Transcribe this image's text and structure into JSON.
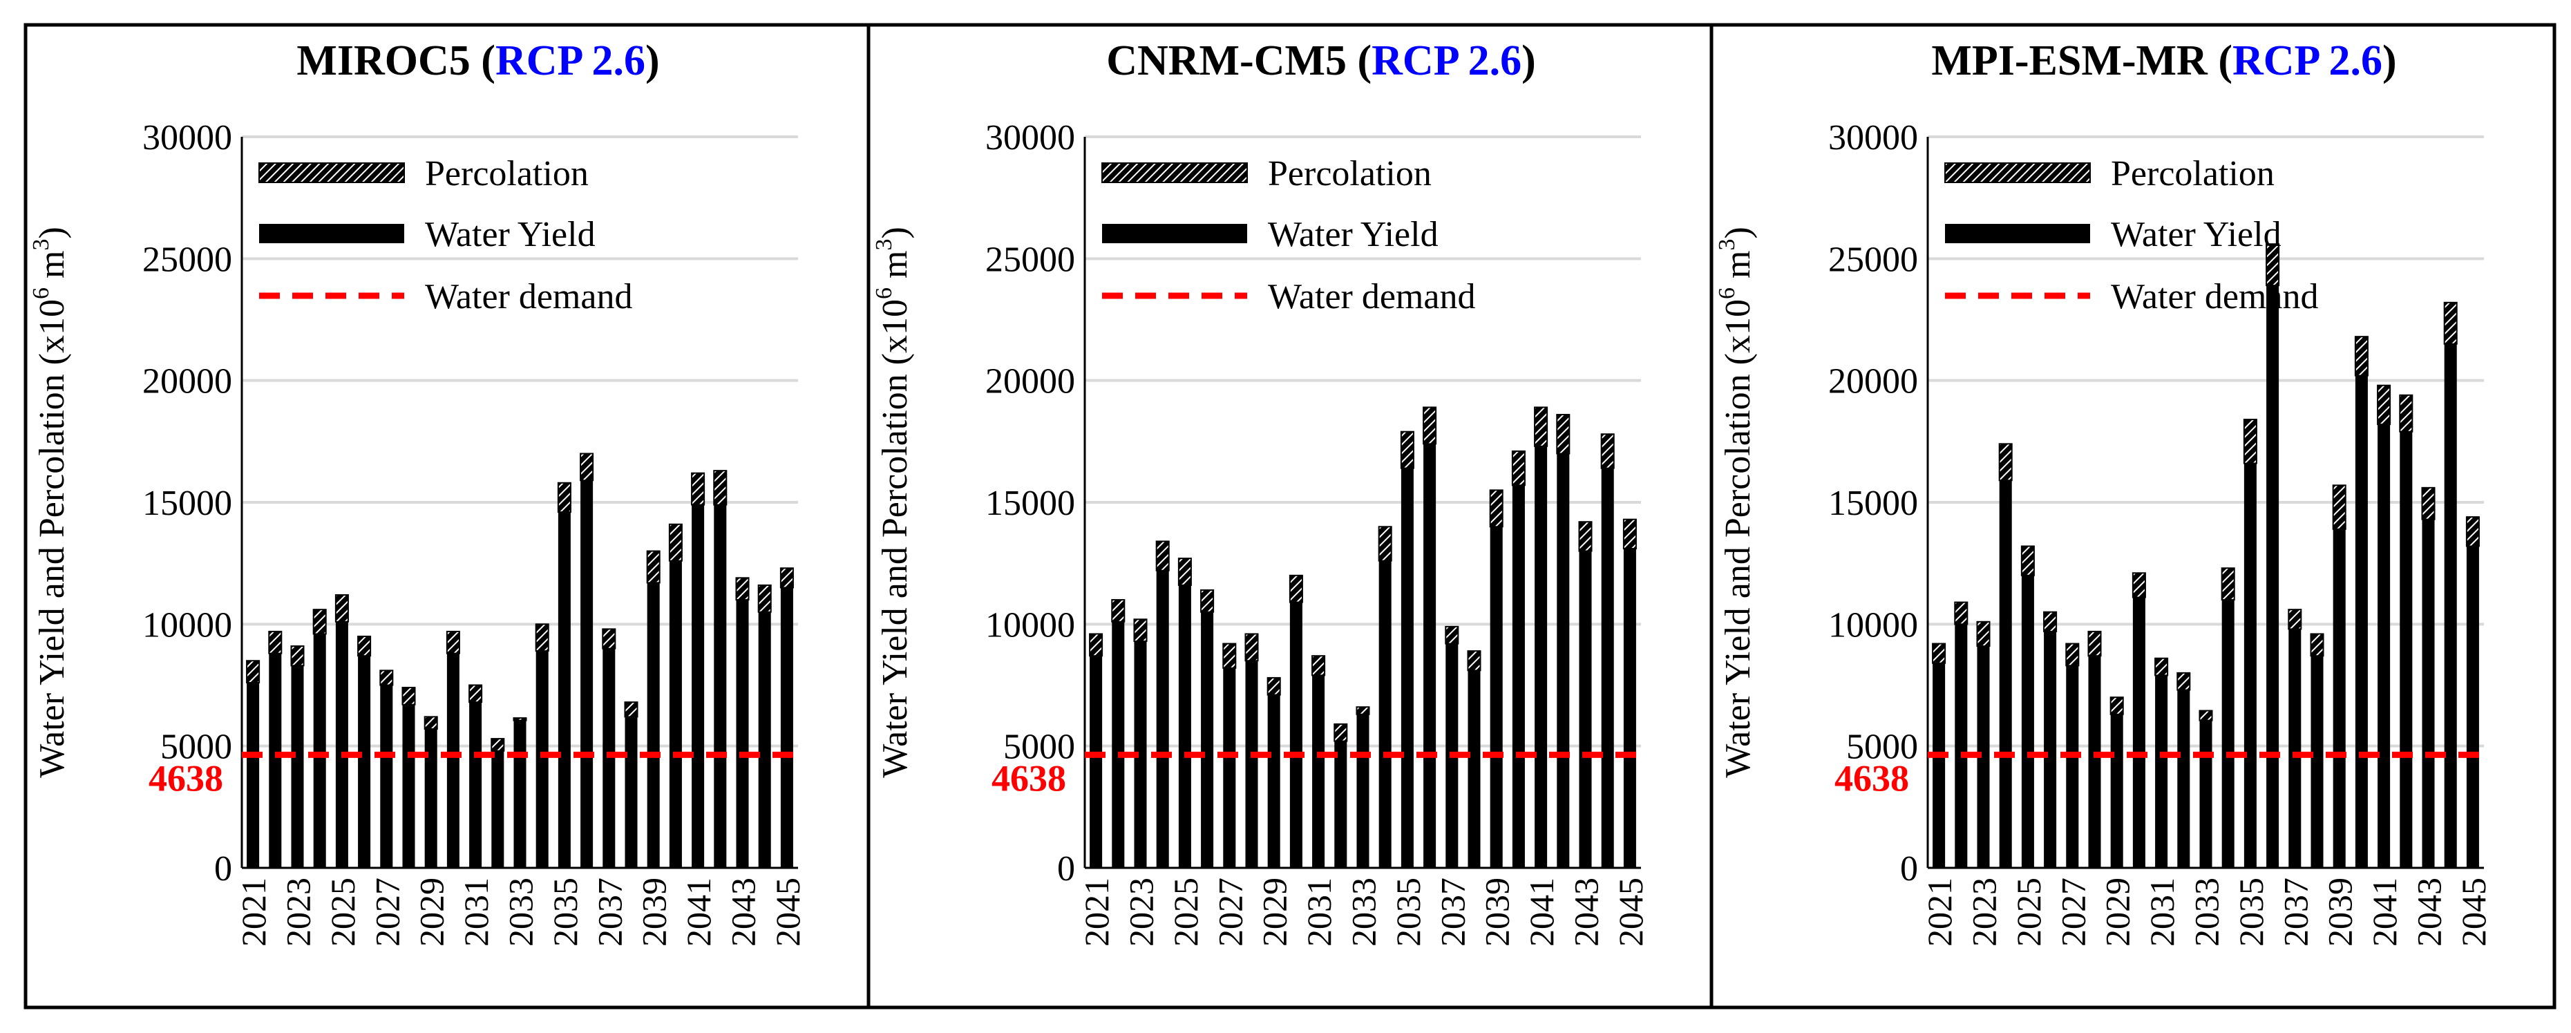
{
  "figure": {
    "y_axis_label_parts": [
      "Water Yield and Percolation (x10",
      "6",
      " m",
      "3",
      ")"
    ],
    "legend": [
      "Percolation",
      "Water Yield",
      "Water demand"
    ],
    "demand_label": "4638"
  },
  "colors": {
    "water_yield": "#000000",
    "percolation_hatch": "#000000",
    "demand_line": "#ff0000",
    "demand_label": "#ff0000",
    "scenario_text": "#0000ff",
    "gridline": "#d9d9d9",
    "axis_label_underline": "#c00000"
  },
  "chart_data": [
    {
      "type": "bar",
      "stacked": true,
      "title_model": "MIROC5",
      "title_scenario": "RCP 2.6",
      "ylabel": "Water Yield and Percolation (x10^6 m^3)",
      "ylim": [
        0,
        30000
      ],
      "yticks": [
        0,
        5000,
        10000,
        15000,
        20000,
        25000,
        30000
      ],
      "grid": true,
      "legend_position": "top-left",
      "categories": [
        2021,
        2022,
        2023,
        2024,
        2025,
        2026,
        2027,
        2028,
        2029,
        2030,
        2031,
        2032,
        2033,
        2034,
        2035,
        2036,
        2037,
        2038,
        2039,
        2040,
        2041,
        2042,
        2043,
        2044,
        2045
      ],
      "xtick_labels": [
        2021,
        2023,
        2025,
        2027,
        2029,
        2031,
        2033,
        2035,
        2037,
        2039,
        2041,
        2043,
        2045
      ],
      "series": [
        {
          "name": "Water Yield",
          "values": [
            7600,
            8800,
            8300,
            9600,
            10100,
            8700,
            7500,
            6700,
            5700,
            8800,
            6800,
            4800,
            6050,
            8900,
            14600,
            15900,
            9000,
            6200,
            11700,
            12600,
            14900,
            14900,
            11000,
            10500,
            11500
          ]
        },
        {
          "name": "Percolation",
          "values": [
            900,
            900,
            800,
            1000,
            1100,
            800,
            600,
            700,
            500,
            900,
            700,
            500,
            100,
            1100,
            1200,
            1100,
            800,
            600,
            1300,
            1500,
            1300,
            1400,
            900,
            1100,
            800
          ]
        }
      ],
      "reference_line": {
        "name": "Water demand",
        "value": 4638,
        "label": "4638"
      }
    },
    {
      "type": "bar",
      "stacked": true,
      "title_model": "CNRM-CM5",
      "title_scenario": "RCP 2.6",
      "ylabel": "Water Yield and Percolation (x10^6 m^3)",
      "ylim": [
        0,
        30000
      ],
      "yticks": [
        0,
        5000,
        10000,
        15000,
        20000,
        25000,
        30000
      ],
      "grid": true,
      "legend_position": "top-left",
      "categories": [
        2021,
        2022,
        2023,
        2024,
        2025,
        2026,
        2027,
        2028,
        2029,
        2030,
        2031,
        2032,
        2033,
        2034,
        2035,
        2036,
        2037,
        2038,
        2039,
        2040,
        2041,
        2042,
        2043,
        2044,
        2045
      ],
      "xtick_labels": [
        2021,
        2023,
        2025,
        2027,
        2029,
        2031,
        2033,
        2035,
        2037,
        2039,
        2041,
        2043,
        2045
      ],
      "series": [
        {
          "name": "Water Yield",
          "values": [
            8700,
            10100,
            9300,
            12200,
            11600,
            10500,
            8200,
            8500,
            7100,
            10900,
            7900,
            5200,
            6300,
            12600,
            16400,
            17400,
            9200,
            8100,
            14000,
            15700,
            17300,
            17000,
            13000,
            16400,
            13100
          ]
        },
        {
          "name": "Percolation",
          "values": [
            900,
            900,
            900,
            1200,
            1100,
            900,
            1000,
            1100,
            700,
            1100,
            800,
            700,
            300,
            1400,
            1500,
            1500,
            700,
            800,
            1500,
            1400,
            1600,
            1600,
            1200,
            1400,
            1200
          ]
        }
      ],
      "reference_line": {
        "name": "Water demand",
        "value": 4638,
        "label": "4638"
      }
    },
    {
      "type": "bar",
      "stacked": true,
      "title_model": "MPI-ESM-MR",
      "title_scenario": "RCP 2.6",
      "ylabel": "Water Yield and Percolation (x10^6 m^3)",
      "ylim": [
        0,
        30000
      ],
      "yticks": [
        0,
        5000,
        10000,
        15000,
        20000,
        25000,
        30000
      ],
      "grid": true,
      "legend_position": "top-left",
      "categories": [
        2021,
        2022,
        2023,
        2024,
        2025,
        2026,
        2027,
        2028,
        2029,
        2030,
        2031,
        2032,
        2033,
        2034,
        2035,
        2036,
        2037,
        2038,
        2039,
        2040,
        2041,
        2042,
        2043,
        2044,
        2045
      ],
      "xtick_labels": [
        2021,
        2023,
        2025,
        2027,
        2029,
        2031,
        2033,
        2035,
        2037,
        2039,
        2041,
        2043,
        2045
      ],
      "series": [
        {
          "name": "Water Yield",
          "values": [
            8400,
            10000,
            9100,
            15900,
            12000,
            9700,
            8300,
            8700,
            6300,
            11100,
            7900,
            7300,
            6050,
            11000,
            16600,
            23900,
            9800,
            8700,
            13900,
            20200,
            18200,
            17900,
            14300,
            21500,
            13200
          ]
        },
        {
          "name": "Percolation",
          "values": [
            800,
            900,
            1000,
            1500,
            1200,
            800,
            900,
            1000,
            700,
            1000,
            700,
            700,
            400,
            1300,
            1800,
            1700,
            800,
            900,
            1800,
            1600,
            1600,
            1500,
            1300,
            1700,
            1200
          ]
        }
      ],
      "reference_line": {
        "name": "Water demand",
        "value": 4638,
        "label": "4638"
      }
    }
  ]
}
